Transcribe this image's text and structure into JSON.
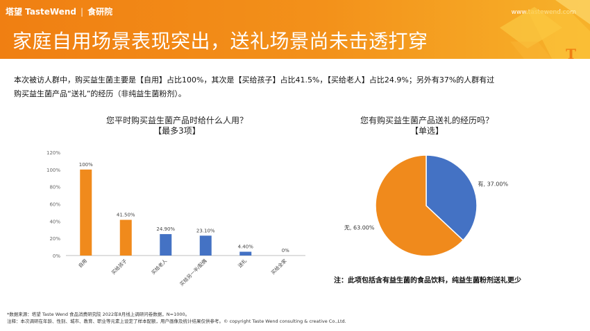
{
  "header": {
    "brand_logo": "塔望 TasteWend",
    "brand_sub": "食研院",
    "site": "www.tastewend.com",
    "title": "家庭自用场景表现突出，送礼场景尚未击透打穿",
    "corner_mark": "T"
  },
  "summary_lines": [
    "本次被访人群中，购买益生菌主要是【自用】占比100%，其次是【买给孩子】占比41.5%，【买给老人】占比24.9%；另外有37%的人群有过",
    "购买益生菌产品“送礼”的经历（非纯益生菌粉剂）。"
  ],
  "colors": {
    "accent_orange": "#f07f12",
    "bar_orange": "#f08a1c",
    "bar_blue": "#4472c4"
  },
  "chart_data": [
    {
      "type": "bar",
      "title": "您平时购买益生菌产品时给什么人用？",
      "subtitle": "【最多3项】",
      "categories": [
        "自用",
        "买给孩子",
        "买给老人",
        "买给另一半/配偶",
        "送礼",
        "买给全家"
      ],
      "values": [
        100,
        41.5,
        24.9,
        23.1,
        4.4,
        0
      ],
      "value_labels": [
        "100%",
        "41.50%",
        "24.90%",
        "23.10%",
        "4.40%",
        "0%"
      ],
      "bar_colors": [
        "#f08a1c",
        "#f08a1c",
        "#4472c4",
        "#4472c4",
        "#4472c4",
        "#4472c4"
      ],
      "ylim": [
        0,
        120
      ],
      "yticks": [
        0,
        20,
        40,
        60,
        80,
        100,
        120
      ],
      "ytick_labels": [
        "0%",
        "20%",
        "40%",
        "60%",
        "80%",
        "100%",
        "120%"
      ],
      "grid": false
    },
    {
      "type": "pie",
      "title": "您有购买益生菌产品送礼的经历吗？",
      "subtitle": "【单选】",
      "slices": [
        {
          "label": "有",
          "value": 37.0,
          "display": "有, 37.00%",
          "color": "#4472c4"
        },
        {
          "label": "无",
          "value": 63.0,
          "display": "无, 63.00%",
          "color": "#f08a1c"
        }
      ]
    }
  ],
  "pie_note": "注：此项包括含有益生菌的食品饮料，纯益生菌粉剂送礼更少",
  "footnotes": [
    "*数据来源：塔望 Taste Wend 食品消费研究院 2022年8月线上调研问卷数据，N=1000。",
    "注释：本次调研在年龄、性别、城市、教育、职业等元素上设定了样本配额，用户画像及统计结果仅供参考。© copyright Taste Wend consulting & creative Co.,Ltd."
  ]
}
